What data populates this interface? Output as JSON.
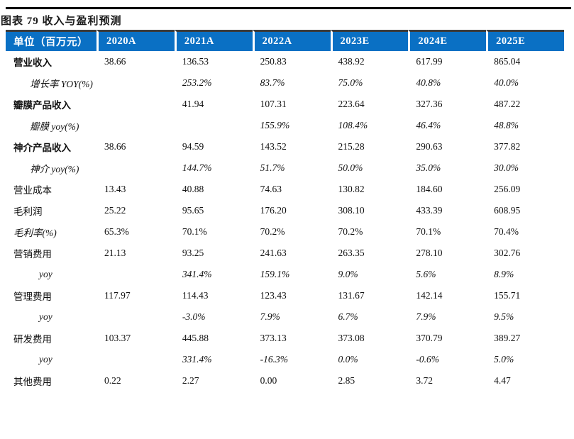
{
  "page": {
    "title": "图表 79 收入与盈利预测"
  },
  "colors": {
    "header_bg": "#0a70c4",
    "header_text": "#ffffff",
    "header_top_border": "#3c3c3c",
    "top_rule": "#000000"
  },
  "table": {
    "unit_header": "单位（百万元）",
    "year_headers": [
      "2020A",
      "2021A",
      "2022A",
      "2023E",
      "2024E",
      "2025E"
    ],
    "rows": [
      {
        "label": "营业收入",
        "bold": true,
        "italic": false,
        "indent": 0,
        "values_italic": false,
        "values": [
          "38.66",
          "136.53",
          "250.83",
          "438.92",
          "617.99",
          "865.04"
        ]
      },
      {
        "label": "增长率 YOY(%)",
        "bold": false,
        "italic": true,
        "indent": 1,
        "values_italic": true,
        "values": [
          "",
          "253.2%",
          "83.7%",
          "75.0%",
          "40.8%",
          "40.0%"
        ]
      },
      {
        "label": "瓣膜产品收入",
        "bold": true,
        "italic": false,
        "indent": 0,
        "values_italic": false,
        "values": [
          "",
          "41.94",
          "107.31",
          "223.64",
          "327.36",
          "487.22"
        ]
      },
      {
        "label": "瓣膜 yoy(%)",
        "bold": false,
        "italic": true,
        "indent": 1,
        "values_italic": true,
        "values": [
          "",
          "",
          "155.9%",
          "108.4%",
          "46.4%",
          "48.8%"
        ]
      },
      {
        "label": "神介产品收入",
        "bold": true,
        "italic": false,
        "indent": 0,
        "values_italic": false,
        "values": [
          "38.66",
          "94.59",
          "143.52",
          "215.28",
          "290.63",
          "377.82"
        ]
      },
      {
        "label": "神介 yoy(%)",
        "bold": false,
        "italic": true,
        "indent": 1,
        "values_italic": true,
        "values": [
          "",
          "144.7%",
          "51.7%",
          "50.0%",
          "35.0%",
          "30.0%"
        ]
      },
      {
        "label": "营业成本",
        "bold": false,
        "italic": false,
        "indent": 0,
        "values_italic": false,
        "values": [
          "13.43",
          "40.88",
          "74.63",
          "130.82",
          "184.60",
          "256.09"
        ]
      },
      {
        "label": "毛利润",
        "bold": false,
        "italic": false,
        "indent": 0,
        "values_italic": false,
        "values": [
          "25.22",
          "95.65",
          "176.20",
          "308.10",
          "433.39",
          "608.95"
        ]
      },
      {
        "label": "毛利率(%)",
        "bold": false,
        "italic": true,
        "indent": 0,
        "values_italic": false,
        "values": [
          "65.3%",
          "70.1%",
          "70.2%",
          "70.2%",
          "70.1%",
          "70.4%"
        ]
      },
      {
        "label": "营销费用",
        "bold": false,
        "italic": false,
        "indent": 0,
        "values_italic": false,
        "values": [
          "21.13",
          "93.25",
          "241.63",
          "263.35",
          "278.10",
          "302.76"
        ]
      },
      {
        "label": "yoy",
        "bold": false,
        "italic": true,
        "indent": 2,
        "values_italic": true,
        "values": [
          "",
          "341.4%",
          "159.1%",
          "9.0%",
          "5.6%",
          "8.9%"
        ]
      },
      {
        "label": "管理费用",
        "bold": false,
        "italic": false,
        "indent": 0,
        "values_italic": false,
        "values": [
          "117.97",
          "114.43",
          "123.43",
          "131.67",
          "142.14",
          "155.71"
        ]
      },
      {
        "label": "yoy",
        "bold": false,
        "italic": true,
        "indent": 2,
        "values_italic": true,
        "values": [
          "",
          "-3.0%",
          "7.9%",
          "6.7%",
          "7.9%",
          "9.5%"
        ]
      },
      {
        "label": "研发费用",
        "bold": false,
        "italic": false,
        "indent": 0,
        "values_italic": false,
        "values": [
          "103.37",
          "445.88",
          "373.13",
          "373.08",
          "370.79",
          "389.27"
        ]
      },
      {
        "label": "yoy",
        "bold": false,
        "italic": true,
        "indent": 2,
        "values_italic": true,
        "values": [
          "",
          "331.4%",
          "-16.3%",
          "0.0%",
          "-0.6%",
          "5.0%"
        ]
      },
      {
        "label": "其他费用",
        "bold": false,
        "italic": false,
        "indent": 0,
        "values_italic": false,
        "values": [
          "0.22",
          "2.27",
          "0.00",
          "2.85",
          "3.72",
          "4.47"
        ]
      }
    ]
  }
}
